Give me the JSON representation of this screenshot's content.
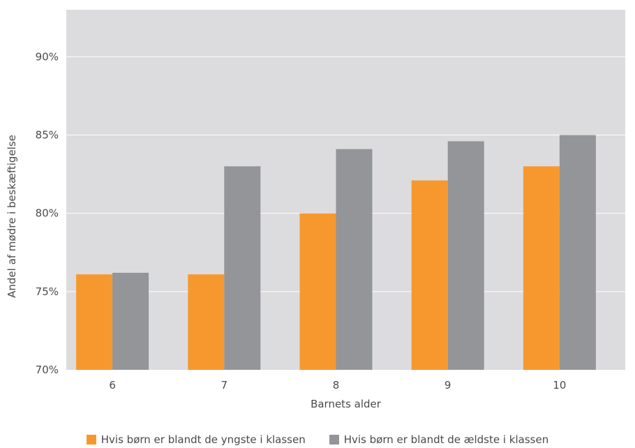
{
  "chart_data": {
    "type": "bar",
    "xlabel": "Barnets alder",
    "ylabel": "Andel af mødre i beskæftigelse",
    "categories": [
      "6",
      "7",
      "8",
      "9",
      "10"
    ],
    "ylim": [
      70,
      93
    ],
    "yticks": [
      70,
      75,
      80,
      85,
      90
    ],
    "ytick_labels": [
      "70%",
      "75%",
      "80%",
      "85%",
      "90%"
    ],
    "grid": true,
    "legend_position": "bottom",
    "series": [
      {
        "name": "Hvis børn er blandt de yngste i klassen",
        "color": "#f7982f",
        "values": [
          76.1,
          76.1,
          80.0,
          82.1,
          83.0
        ]
      },
      {
        "name": "Hvis børn er blandt de ældste i klassen",
        "color": "#939598",
        "values": [
          76.2,
          83.0,
          84.1,
          84.6,
          85.0
        ]
      }
    ],
    "plot_background": "#dcdcde",
    "gridline_color": "#ffffff"
  }
}
